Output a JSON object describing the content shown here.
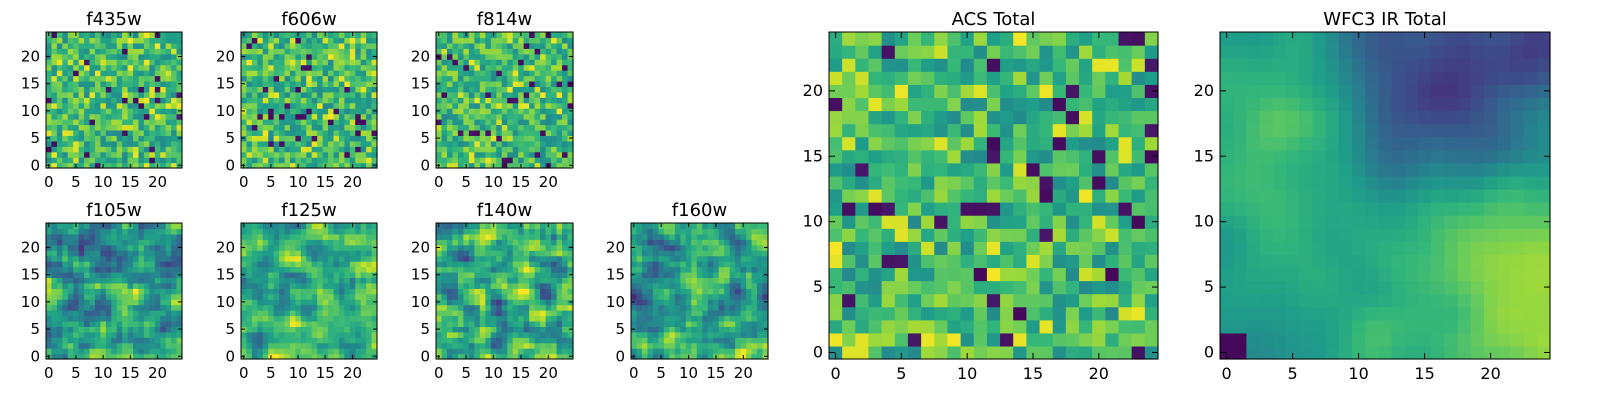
{
  "chart_data": [
    {
      "type": "heatmap",
      "title": "f435w",
      "grid": [
        25,
        25
      ],
      "texture": "noise",
      "xticks": [
        "0",
        "5",
        "10",
        "15",
        "20"
      ],
      "yticks": [
        "0",
        "5",
        "10",
        "15",
        "20"
      ],
      "xlim": [
        0,
        25
      ],
      "ylim": [
        0,
        25
      ],
      "colormap": "viridis"
    },
    {
      "type": "heatmap",
      "title": "f606w",
      "grid": [
        25,
        25
      ],
      "texture": "noise",
      "xticks": [
        "0",
        "5",
        "10",
        "15",
        "20"
      ],
      "yticks": [
        "0",
        "5",
        "10",
        "15",
        "20"
      ],
      "xlim": [
        0,
        25
      ],
      "ylim": [
        0,
        25
      ],
      "colormap": "viridis"
    },
    {
      "type": "heatmap",
      "title": "f814w",
      "grid": [
        25,
        25
      ],
      "texture": "noise",
      "xticks": [
        "0",
        "5",
        "10",
        "15",
        "20"
      ],
      "yticks": [
        "0",
        "5",
        "10",
        "15",
        "20"
      ],
      "xlim": [
        0,
        25
      ],
      "ylim": [
        0,
        25
      ],
      "colormap": "viridis"
    },
    {
      "type": "heatmap",
      "title": "f105w",
      "grid": [
        25,
        25
      ],
      "texture": "smooth",
      "xticks": [
        "0",
        "5",
        "10",
        "15",
        "20"
      ],
      "yticks": [
        "0",
        "5",
        "10",
        "15",
        "20"
      ],
      "xlim": [
        0,
        25
      ],
      "ylim": [
        0,
        25
      ],
      "colormap": "viridis"
    },
    {
      "type": "heatmap",
      "title": "f125w",
      "grid": [
        25,
        25
      ],
      "texture": "smooth-bright",
      "xticks": [
        "0",
        "5",
        "10",
        "15",
        "20"
      ],
      "yticks": [
        "0",
        "5",
        "10",
        "15",
        "20"
      ],
      "xlim": [
        0,
        25
      ],
      "ylim": [
        0,
        25
      ],
      "colormap": "viridis"
    },
    {
      "type": "heatmap",
      "title": "f140w",
      "grid": [
        25,
        25
      ],
      "texture": "smooth",
      "xticks": [
        "0",
        "5",
        "10",
        "15",
        "20"
      ],
      "yticks": [
        "0",
        "5",
        "10",
        "15",
        "20"
      ],
      "xlim": [
        0,
        25
      ],
      "ylim": [
        0,
        25
      ],
      "colormap": "viridis"
    },
    {
      "type": "heatmap",
      "title": "f160w",
      "grid": [
        25,
        25
      ],
      "texture": "smooth-dark",
      "xticks": [
        "0",
        "5",
        "10",
        "15",
        "20"
      ],
      "yticks": [
        "0",
        "5",
        "10",
        "15",
        "20"
      ],
      "xlim": [
        0,
        25
      ],
      "ylim": [
        0,
        25
      ],
      "colormap": "viridis"
    },
    {
      "type": "heatmap",
      "title": "ACS Total",
      "grid": [
        25,
        25
      ],
      "texture": "noise",
      "xticks": [
        "0",
        "5",
        "10",
        "15",
        "20"
      ],
      "yticks": [
        "0",
        "5",
        "10",
        "15",
        "20"
      ],
      "xlim": [
        0,
        25
      ],
      "ylim": [
        0,
        25
      ],
      "colormap": "viridis"
    },
    {
      "type": "heatmap",
      "title": "WFC3 IR Total",
      "grid": [
        25,
        25
      ],
      "texture": "gradient",
      "xticks": [
        "0",
        "5",
        "10",
        "15",
        "20"
      ],
      "yticks": [
        "0",
        "5",
        "10",
        "15",
        "20"
      ],
      "xlim": [
        0,
        25
      ],
      "ylim": [
        0,
        25
      ],
      "colormap": "viridis"
    }
  ]
}
